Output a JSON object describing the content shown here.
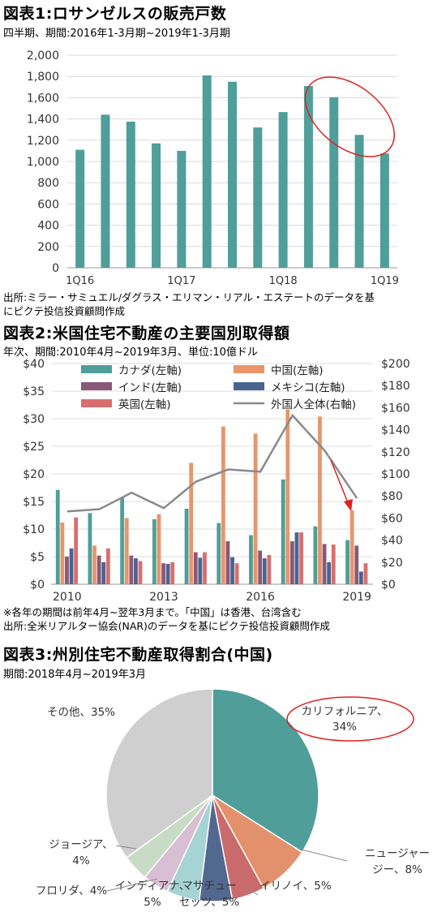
{
  "figures": [
    {
      "title": "図表1:ロサンゼルスの販売戸数",
      "subtitle": "四半期、期間:2016年1-3月期~2019年1-3月期",
      "source": [
        "出所:ミラー・サミュエル/ダグラス・エリマン・リアル・エステートのデータを基",
        "にピクテ投信投資顧問作成"
      ]
    },
    {
      "title": "図表2:米国住宅不動産の主要国別取得額",
      "subtitle": "年次、期間:2010年4月~2019年3月、単位:10億ドル",
      "source": [
        "※各年の期間は前年4月~翌年3月まで。「中国」は香港、台湾含む",
        "出所:全米リアルター協会(NAR)のデータを基にピクテ投信投資顧問作成"
      ]
    },
    {
      "title": "図表3:州別住宅不動産取得割合(中国)",
      "subtitle": "期間:2018年4月~2019年3月"
    }
  ],
  "chart_data": [
    {
      "type": "bar",
      "categories": [
        "1Q16",
        "2Q16",
        "3Q16",
        "4Q16",
        "1Q17",
        "2Q17",
        "3Q17",
        "4Q17",
        "1Q18",
        "2Q18",
        "3Q18",
        "4Q18",
        "1Q19"
      ],
      "x_tick_labels": [
        "1Q16",
        "1Q17",
        "1Q18",
        "1Q19"
      ],
      "values": [
        1110,
        1440,
        1375,
        1170,
        1100,
        1810,
        1750,
        1320,
        1465,
        1710,
        1605,
        1250,
        1075
      ],
      "ylim": [
        0,
        2000
      ],
      "y_ticks": [
        "0",
        "200",
        "400",
        "600",
        "800",
        "1,000",
        "1,200",
        "1,400",
        "1,600",
        "1,800",
        "2,000"
      ],
      "color": "#4f9e9a",
      "annotation": "red ellipse around 1Q18-1Q19"
    },
    {
      "type": "bar",
      "categories": [
        "2010",
        "2011",
        "2012",
        "2013",
        "2014",
        "2015",
        "2016",
        "2017",
        "2018",
        "2019"
      ],
      "x_tick_labels": [
        "2010",
        "2013",
        "2016",
        "2019"
      ],
      "y_left_ticks": [
        "$0",
        "$5",
        "$10",
        "$15",
        "$20",
        "$25",
        "$30",
        "$35",
        "$40"
      ],
      "y_right_ticks": [
        "$0",
        "$20",
        "$40",
        "$60",
        "$80",
        "$100",
        "$120",
        "$140",
        "$160",
        "$180",
        "$200"
      ],
      "ylim_left": [
        0,
        40
      ],
      "ylim_right": [
        0,
        200
      ],
      "series": [
        {
          "name": "カナダ(左軸)",
          "color": "#4f9e9a",
          "values": [
            17.1,
            12.9,
            15.7,
            11.8,
            13.7,
            11.1,
            8.9,
            19.0,
            10.5,
            8.0
          ]
        },
        {
          "name": "中国(左軸)",
          "color": "#e8956a",
          "values": [
            11.2,
            7.0,
            12.0,
            12.7,
            22.0,
            28.6,
            27.3,
            31.7,
            30.4,
            13.4
          ]
        },
        {
          "name": "インド(左軸)",
          "color": "#8a5878",
          "values": [
            5.0,
            5.2,
            5.2,
            3.8,
            5.8,
            7.8,
            6.1,
            7.8,
            7.3,
            7.0
          ]
        },
        {
          "name": "メキシコ(左軸)",
          "color": "#4a6490",
          "values": [
            6.5,
            4.0,
            4.7,
            3.7,
            4.8,
            4.9,
            4.7,
            9.4,
            4.0,
            2.3
          ]
        },
        {
          "name": "英国(左軸)",
          "color": "#d96e6e",
          "values": [
            12.1,
            6.5,
            4.2,
            4.0,
            5.8,
            3.8,
            5.3,
            9.4,
            7.2,
            3.8
          ]
        }
      ],
      "line": {
        "name": "外国人全体(右軸)",
        "color": "#8a8a8a",
        "values": [
          66,
          68,
          83,
          69,
          93,
          104,
          102,
          153,
          121,
          78
        ]
      },
      "annotation": "red arrow pointing to 2019"
    },
    {
      "type": "pie",
      "slices": [
        {
          "label": "カリフォルニア、",
          "pct_label": "34%",
          "value": 34,
          "color": "#4f9e9a"
        },
        {
          "label": "ニュージャー",
          "label2": "ジー、8%",
          "value": 8,
          "color": "#e3916d"
        },
        {
          "label": "イリノイ、5%",
          "value": 5,
          "color": "#c96a6c"
        },
        {
          "label": "マサチュー",
          "label2": "セッツ、5%",
          "value": 5,
          "color": "#52688f"
        },
        {
          "label": "インディアナ、",
          "label2": "5%",
          "value": 5,
          "color": "#a6d3d3"
        },
        {
          "label": "フロリダ、4%",
          "value": 4,
          "color": "#d8bfd4"
        },
        {
          "label": "ジョージア、",
          "label2": "4%",
          "value": 4,
          "color": "#c8dcc5"
        },
        {
          "label": "その他、35%",
          "value": 35,
          "color": "#cfcfcf"
        }
      ]
    }
  ]
}
